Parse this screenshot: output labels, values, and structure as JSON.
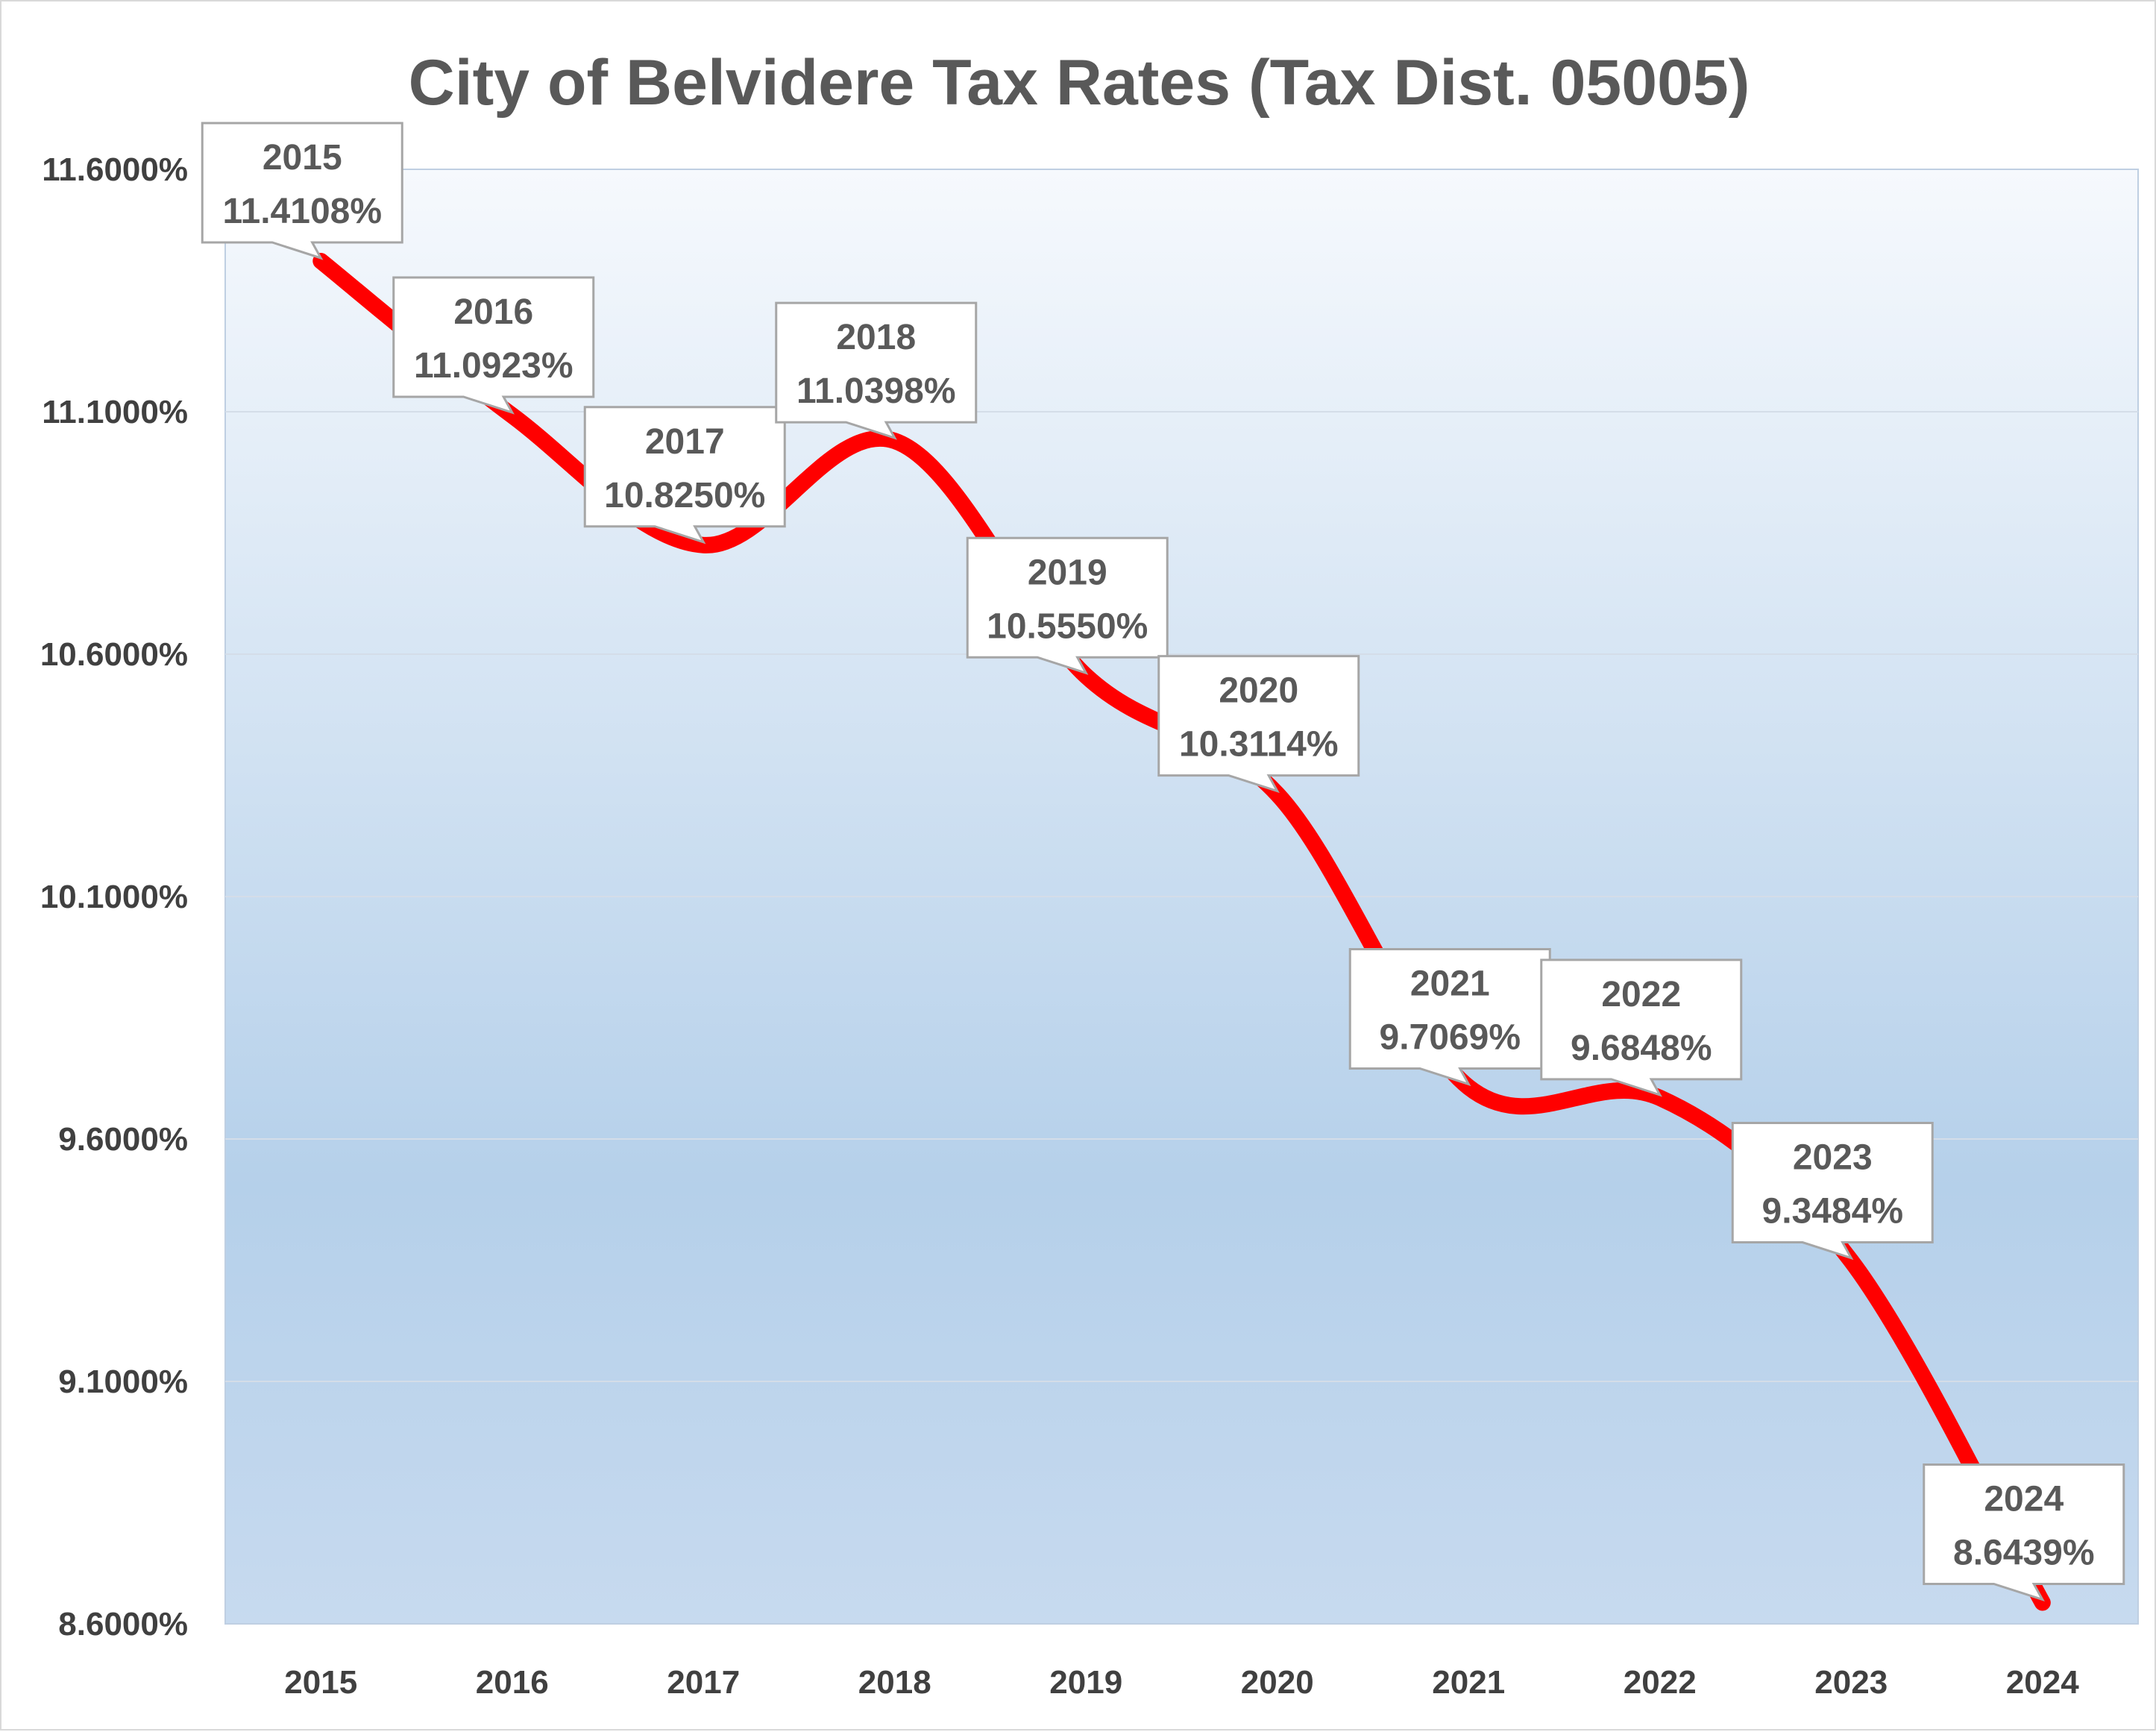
{
  "chart_data": {
    "type": "line",
    "title": "City of Belvidere Tax Rates (Tax Dist. 05005)",
    "xlabel": "",
    "ylabel": "",
    "categories": [
      "2015",
      "2016",
      "2017",
      "2018",
      "2019",
      "2020",
      "2021",
      "2022",
      "2023",
      "2024"
    ],
    "series": [
      {
        "values": [
          11.4108,
          11.0923,
          10.825,
          11.0398,
          10.555,
          10.3114,
          9.7069,
          9.6848,
          9.3484,
          8.6439
        ],
        "color": "#ff0000",
        "smooth": true
      }
    ],
    "data_labels": [
      {
        "year": "2015",
        "value": "11.4108%"
      },
      {
        "year": "2016",
        "value": "11.0923%"
      },
      {
        "year": "2017",
        "value": "10.8250%"
      },
      {
        "year": "2018",
        "value": "11.0398%"
      },
      {
        "year": "2019",
        "value": "10.5550%"
      },
      {
        "year": "2020",
        "value": "10.3114%"
      },
      {
        "year": "2021",
        "value": "9.7069%"
      },
      {
        "year": "2022",
        "value": "9.6848%"
      },
      {
        "year": "2023",
        "value": "9.3484%"
      },
      {
        "year": "2024",
        "value": "8.6439%"
      }
    ],
    "y_ticks": [
      {
        "value": 8.6,
        "label": "8.6000%"
      },
      {
        "value": 9.1,
        "label": "9.1000%"
      },
      {
        "value": 9.6,
        "label": "9.6000%"
      },
      {
        "value": 10.1,
        "label": "10.1000%"
      },
      {
        "value": 10.6,
        "label": "10.6000%"
      },
      {
        "value": 11.1,
        "label": "11.1000%"
      },
      {
        "value": 11.6,
        "label": "11.6000%"
      }
    ],
    "ylim": [
      8.6,
      11.6
    ],
    "grid": true,
    "legend": "none",
    "background": "gradient-blue"
  }
}
